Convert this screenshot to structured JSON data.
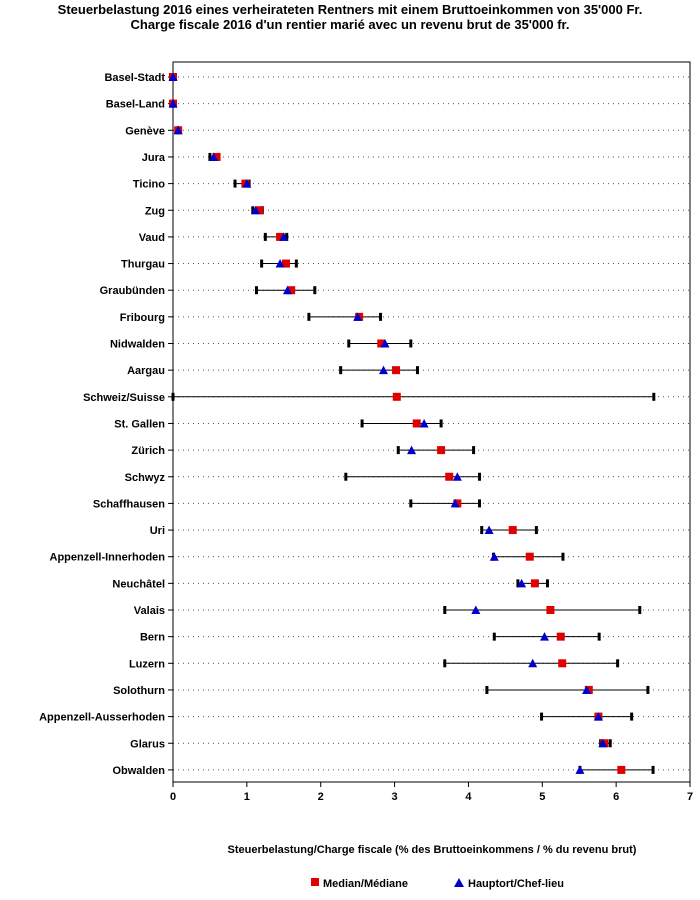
{
  "chart_data": {
    "type": "scatter",
    "title_de": "Steuerbelastung 2016 eines verheirateten Rentners mit einem Bruttoeinkommen von 35'000 Fr.",
    "title_fr": "Charge fiscale 2016 d'un rentier marié avec un revenu brut de 35'000 fr.",
    "xlabel": "Steuerbelastung/Charge fiscale (% des Bruttoeinkommens / % du revenu brut)",
    "xlim": [
      0,
      7
    ],
    "xticks": [
      "0",
      "1",
      "2",
      "3",
      "4",
      "5",
      "6",
      "7"
    ],
    "grid": "horizontal dotted",
    "legend": [
      {
        "name": "Median/Médiane",
        "color": "#e00000",
        "marker": "square"
      },
      {
        "name": "Hauptort/Chef-lieu",
        "color": "#0000cc",
        "marker": "triangle"
      }
    ],
    "rows": [
      {
        "name": "Basel-Stadt",
        "min": 0.0,
        "max": 0.0,
        "median": 0.0,
        "capital": 0.0
      },
      {
        "name": "Basel-Land",
        "min": 0.0,
        "max": 0.0,
        "median": 0.0,
        "capital": 0.0
      },
      {
        "name": "Genève",
        "min": 0.07,
        "max": 0.07,
        "median": 0.07,
        "capital": 0.07
      },
      {
        "name": "Jura",
        "min": 0.5,
        "max": 0.62,
        "median": 0.59,
        "capital": 0.55
      },
      {
        "name": "Ticino",
        "min": 0.84,
        "max": 1.03,
        "median": 0.98,
        "capital": 1.0
      },
      {
        "name": "Zug",
        "min": 1.08,
        "max": 1.21,
        "median": 1.17,
        "capital": 1.12
      },
      {
        "name": "Vaud",
        "min": 1.25,
        "max": 1.54,
        "median": 1.45,
        "capital": 1.5
      },
      {
        "name": "Thurgau",
        "min": 1.2,
        "max": 1.67,
        "median": 1.53,
        "capital": 1.45
      },
      {
        "name": "Graubünden",
        "min": 1.13,
        "max": 1.92,
        "median": 1.6,
        "capital": 1.55
      },
      {
        "name": "Fribourg",
        "min": 1.84,
        "max": 2.81,
        "median": 2.52,
        "capital": 2.5
      },
      {
        "name": "Nidwalden",
        "min": 2.38,
        "max": 3.22,
        "median": 2.82,
        "capital": 2.87
      },
      {
        "name": "Aargau",
        "min": 2.27,
        "max": 3.31,
        "median": 3.02,
        "capital": 2.85
      },
      {
        "name": "Schweiz/Suisse",
        "min": 0.0,
        "max": 6.51,
        "median": 3.03,
        "capital": null
      },
      {
        "name": "St. Gallen",
        "min": 2.56,
        "max": 3.63,
        "median": 3.3,
        "capital": 3.4
      },
      {
        "name": "Zürich",
        "min": 3.05,
        "max": 4.07,
        "median": 3.63,
        "capital": 3.23
      },
      {
        "name": "Schwyz",
        "min": 2.34,
        "max": 4.15,
        "median": 3.74,
        "capital": 3.85
      },
      {
        "name": "Schaffhausen",
        "min": 3.22,
        "max": 4.15,
        "median": 3.85,
        "capital": 3.82
      },
      {
        "name": "Uri",
        "min": 4.18,
        "max": 4.92,
        "median": 4.6,
        "capital": 4.28
      },
      {
        "name": "Appenzell-Innerhoden",
        "min": 4.34,
        "max": 5.28,
        "median": 4.83,
        "capital": 4.35
      },
      {
        "name": "Neuchâtel",
        "min": 4.67,
        "max": 5.07,
        "median": 4.9,
        "capital": 4.72
      },
      {
        "name": "Valais",
        "min": 3.68,
        "max": 6.32,
        "median": 5.11,
        "capital": 4.1
      },
      {
        "name": "Bern",
        "min": 4.35,
        "max": 5.77,
        "median": 5.25,
        "capital": 5.03
      },
      {
        "name": "Luzern",
        "min": 3.68,
        "max": 6.02,
        "median": 5.27,
        "capital": 4.87
      },
      {
        "name": "Solothurn",
        "min": 4.25,
        "max": 6.43,
        "median": 5.63,
        "capital": 5.6
      },
      {
        "name": "Appenzell-Ausserhoden",
        "min": 4.99,
        "max": 6.21,
        "median": 5.76,
        "capital": 5.76
      },
      {
        "name": "Glarus",
        "min": 5.79,
        "max": 5.92,
        "median": 5.84,
        "capital": 5.82
      },
      {
        "name": "Obwalden",
        "min": 5.51,
        "max": 6.5,
        "median": 6.07,
        "capital": 5.51
      }
    ]
  }
}
